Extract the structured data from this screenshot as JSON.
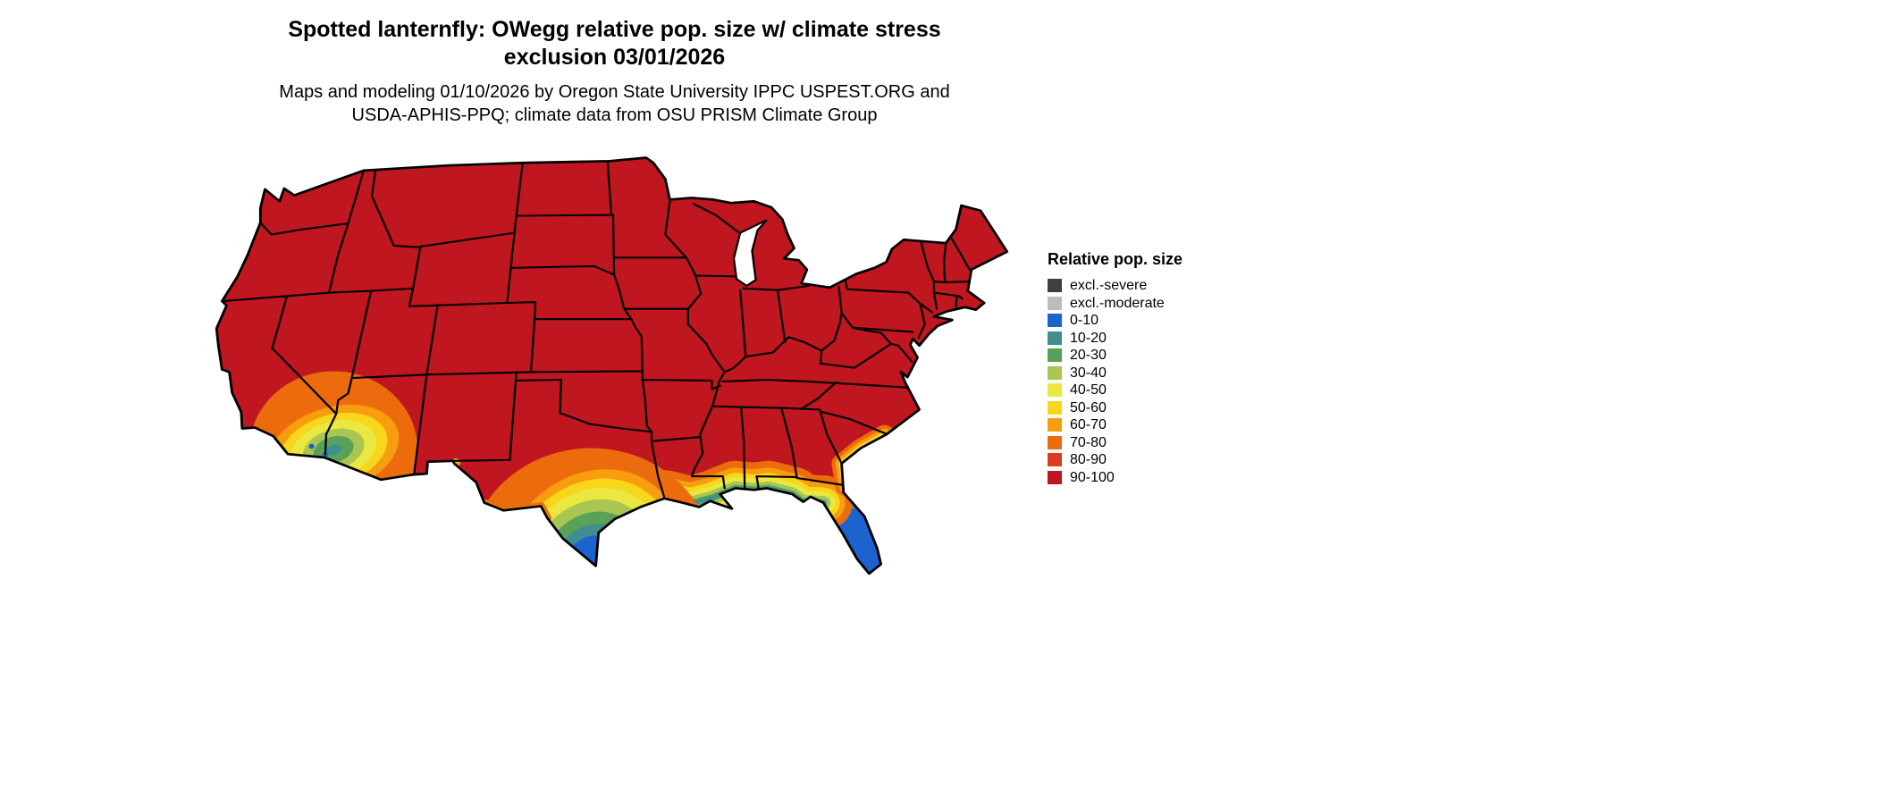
{
  "title": {
    "line1": "Spotted lanternfly: OWegg relative pop. size w/ climate stress",
    "line2": "exclusion 03/01/2026"
  },
  "subtitle": {
    "line1": "Maps and modeling 01/10/2026 by Oregon State University IPPC USPEST.ORG and",
    "line2": "USDA-APHIS-PPQ; climate data from OSU PRISM Climate Group"
  },
  "legend": {
    "title": "Relative pop. size",
    "items": [
      {
        "label": "excl.-severe",
        "color": "#3f3f3f"
      },
      {
        "label": "excl.-moderate",
        "color": "#bcbcbc"
      },
      {
        "label": "0-10",
        "color": "#1d63cf"
      },
      {
        "label": "10-20",
        "color": "#3f8e92"
      },
      {
        "label": "20-30",
        "color": "#57a257"
      },
      {
        "label": "30-40",
        "color": "#a9c653"
      },
      {
        "label": "40-50",
        "color": "#eae840"
      },
      {
        "label": "50-60",
        "color": "#f7d61c"
      },
      {
        "label": "60-70",
        "color": "#f89d0e"
      },
      {
        "label": "70-80",
        "color": "#ec6c0d"
      },
      {
        "label": "80-90",
        "color": "#da3b21"
      },
      {
        "label": "90-100",
        "color": "#c0161f"
      }
    ]
  },
  "map": {
    "base_color": "#c0161f",
    "description": "Continental US raster map; most of the country shaded 90-100 (dark red). Gradient bands toward 0-10 (blue) appear in south Texas, the Florida peninsula, along the Gulf and southern Atlantic coasts, and in southwest Arizona / southeast California.",
    "regions": [
      {
        "area": "South Texas tip and coast",
        "colors": "blue core grading outward through teal, green, yellow, orange to red"
      },
      {
        "area": "Florida peninsula",
        "colors": "blue south of Tampa/Orlando, grading to yellow and orange in north Florida and the panhandle"
      },
      {
        "area": "Gulf coast (LA/MS/AL)",
        "colors": "narrow green-yellow shoreline band with orange inland fringe"
      },
      {
        "area": "Georgia/South Carolina coast",
        "colors": "thin orange-yellow coastal strip"
      },
      {
        "area": "Southwest Arizona / southeast California",
        "colors": "teal-green core with yellow and orange fringe"
      }
    ]
  }
}
